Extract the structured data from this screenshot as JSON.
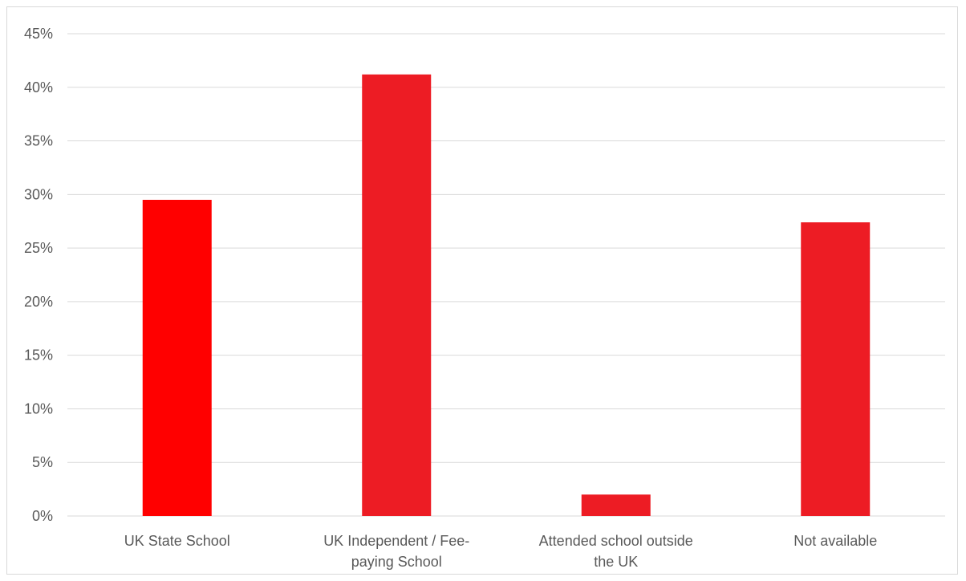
{
  "chart_data": {
    "type": "bar",
    "categories": [
      [
        "UK State School"
      ],
      [
        "UK Independent / Fee-",
        "paying School"
      ],
      [
        "Attended school outside",
        "the UK"
      ],
      [
        "Not available"
      ]
    ],
    "values": [
      29.5,
      41.2,
      2.0,
      27.4
    ],
    "bar_colors": [
      "#ff0000",
      "#ed1c24",
      "#ed1c24",
      "#ed1c24"
    ],
    "ylim": [
      0,
      45
    ],
    "y_ticks": [
      0,
      5,
      10,
      15,
      20,
      25,
      30,
      35,
      40,
      45
    ],
    "y_tick_labels": [
      "0%",
      "5%",
      "10%",
      "15%",
      "20%",
      "25%",
      "30%",
      "35%",
      "40%",
      "45%"
    ],
    "grid": true,
    "grid_color": "#d9d9d9",
    "title": "",
    "xlabel": "",
    "ylabel": ""
  }
}
